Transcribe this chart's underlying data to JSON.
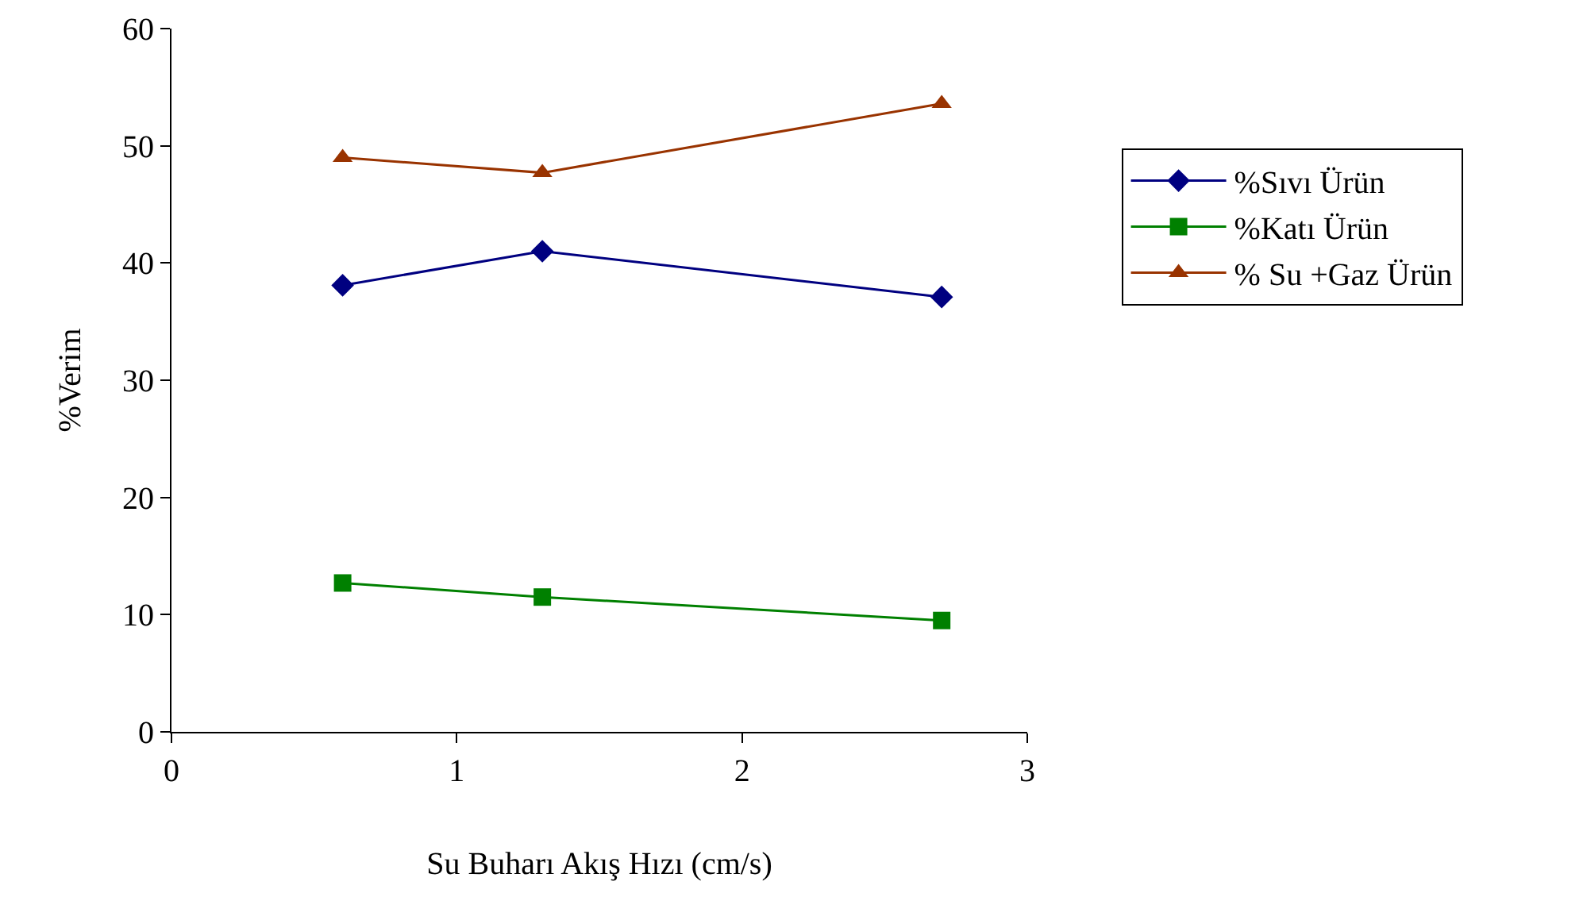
{
  "chart_data": {
    "type": "line",
    "xlabel": "Su Buharı Akış Hızı (cm/s)",
    "ylabel": "%Verim",
    "x": [
      0.6,
      1.3,
      2.7
    ],
    "series": [
      {
        "name": "%Sıvı Ürün",
        "color": "#000080",
        "marker": "diamond",
        "values": [
          38.1,
          41.0,
          37.1
        ]
      },
      {
        "name": "%Katı Ürün",
        "color": "#008000",
        "marker": "square",
        "values": [
          12.7,
          11.5,
          9.5
        ]
      },
      {
        "name": "% Su +Gaz Ürün",
        "color": "#993300",
        "marker": "triangle",
        "values": [
          49.0,
          47.7,
          53.6
        ]
      }
    ],
    "xlim": [
      0,
      3
    ],
    "xticks": [
      0,
      1,
      2,
      3
    ],
    "ylim": [
      0,
      60
    ],
    "yticks": [
      0,
      10,
      20,
      30,
      40,
      50,
      60
    ],
    "legend": "right",
    "line_style": "solid"
  }
}
